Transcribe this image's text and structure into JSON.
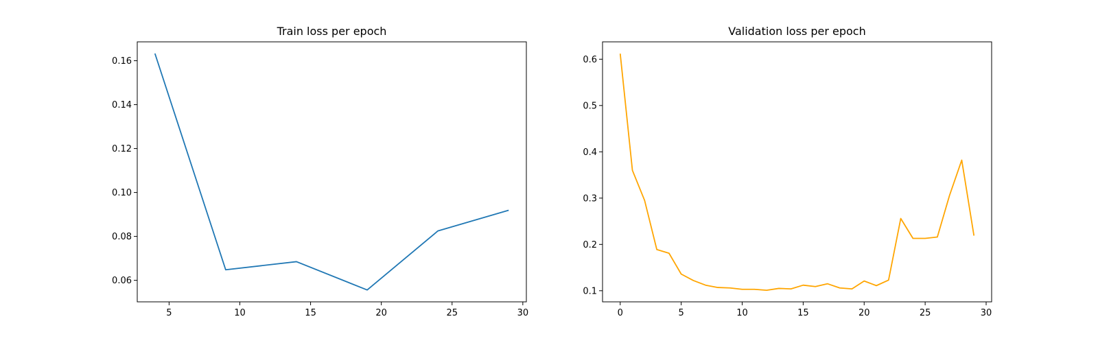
{
  "chart_data": [
    {
      "type": "line",
      "title": "Train loss per epoch",
      "xlabel": "",
      "ylabel": "",
      "xlim": [
        2.75,
        30.25
      ],
      "ylim": [
        0.0502,
        0.1686
      ],
      "xticks": [
        5,
        10,
        15,
        20,
        25,
        30
      ],
      "xtick_labels": [
        "5",
        "10",
        "15",
        "20",
        "25",
        "30"
      ],
      "yticks": [
        0.06,
        0.08,
        0.1,
        0.12,
        0.14,
        0.16
      ],
      "ytick_labels": [
        "0.06",
        "0.08",
        "0.10",
        "0.12",
        "0.14",
        "0.16"
      ],
      "grid": false,
      "series": [
        {
          "color": "#1f77b4",
          "x": [
            4,
            9,
            14,
            19,
            24,
            29
          ],
          "y": [
            0.1633,
            0.0648,
            0.0685,
            0.0556,
            0.0825,
            0.0919
          ]
        }
      ]
    },
    {
      "type": "line",
      "title": "Validation loss per epoch",
      "xlabel": "",
      "ylabel": "",
      "xlim": [
        -1.45,
        30.45
      ],
      "ylim": [
        0.076,
        0.6375
      ],
      "xticks": [
        0,
        5,
        10,
        15,
        20,
        25,
        30
      ],
      "xtick_labels": [
        "0",
        "5",
        "10",
        "15",
        "20",
        "25",
        "30"
      ],
      "yticks": [
        0.1,
        0.2,
        0.3,
        0.4,
        0.5,
        0.6
      ],
      "ytick_labels": [
        "0.1",
        "0.2",
        "0.3",
        "0.4",
        "0.5",
        "0.6"
      ],
      "grid": false,
      "series": [
        {
          "color": "#ffa500",
          "x": [
            0,
            1,
            2,
            3,
            4,
            5,
            6,
            7,
            8,
            9,
            10,
            11,
            12,
            13,
            14,
            15,
            16,
            17,
            18,
            19,
            20,
            21,
            22,
            23,
            24,
            25,
            26,
            27,
            28,
            29
          ],
          "y": [
            0.612,
            0.36,
            0.295,
            0.189,
            0.181,
            0.136,
            0.122,
            0.112,
            0.107,
            0.106,
            0.103,
            0.103,
            0.101,
            0.105,
            0.104,
            0.112,
            0.109,
            0.115,
            0.106,
            0.104,
            0.121,
            0.111,
            0.123,
            0.256,
            0.213,
            0.213,
            0.216,
            0.306,
            0.382,
            0.219
          ]
        }
      ]
    }
  ]
}
